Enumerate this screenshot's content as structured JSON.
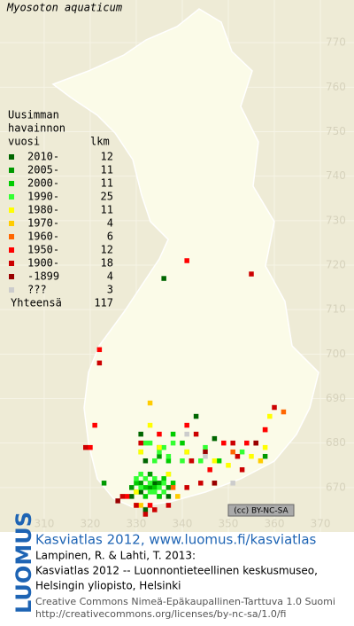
{
  "chart_data": {
    "type": "grid-map",
    "title": "Myosoton aquaticum",
    "legend_heading": [
      "Uusimman",
      "havainnon",
      "vuosi"
    ],
    "count_heading": "lkm",
    "total_label": "Yhteensä",
    "total": 117,
    "xlim": [
      300.4,
      377.3
    ],
    "ylim": [
      660,
      779.6
    ],
    "xticks": [
      310,
      320,
      330,
      340,
      350,
      360,
      370
    ],
    "yticks": [
      670,
      680,
      690,
      700,
      710,
      720,
      730,
      740,
      750,
      760,
      770
    ],
    "grid": true,
    "license_badge": "(cc) BY-NC-SA",
    "series": [
      {
        "name": "2010-",
        "count": 12,
        "color": "#006600",
        "x": [
          336,
          331,
          332,
          334,
          335,
          331,
          337,
          347,
          343,
          341,
          329,
          332
        ],
        "y": [
          717,
          682,
          676,
          671,
          668,
          669,
          668,
          681,
          686,
          678,
          668,
          665
        ]
      },
      {
        "name": "2005-",
        "count": 11,
        "color": "#009900",
        "x": [
          335,
          335,
          333,
          331,
          335,
          329,
          337,
          342,
          323,
          358,
          333
        ],
        "y": [
          679,
          677,
          670,
          671,
          671,
          670,
          670,
          676,
          671,
          677,
          673
        ]
      },
      {
        "name": "2000-",
        "count": 11,
        "color": "#00cc00",
        "x": [
          330,
          332,
          334,
          336,
          338,
          332,
          335,
          340,
          337,
          348,
          338
        ],
        "y": [
          671,
          670,
          670,
          672,
          671,
          668,
          668,
          680,
          676,
          676,
          682
        ]
      },
      {
        "name": "1990-",
        "count": 25,
        "color": "#33ff33",
        "x": [
          330,
          331,
          332,
          333,
          334,
          335,
          336,
          331,
          333,
          334,
          336,
          330,
          337,
          334,
          335,
          336,
          333,
          337,
          344,
          345,
          340,
          338,
          331,
          332,
          353
        ],
        "y": [
          672,
          673,
          672,
          671,
          672,
          670,
          671,
          670,
          669,
          669,
          669,
          669,
          673,
          676,
          678,
          679,
          680,
          677,
          676,
          679,
          676,
          680,
          678,
          680,
          678
        ]
      },
      {
        "name": "1980-",
        "count": 11,
        "color": "#ffff00",
        "x": [
          358,
          355,
          359,
          335,
          331,
          330,
          337,
          341,
          333,
          347,
          350
        ],
        "y": [
          679,
          677,
          686,
          679,
          678,
          669,
          673,
          678,
          684,
          676,
          675
        ]
      },
      {
        "name": "1970-",
        "count": 4,
        "color": "#ffcc00",
        "x": [
          333,
          331,
          339,
          357
        ],
        "y": [
          689,
          666,
          668,
          676
        ]
      },
      {
        "name": "1960-",
        "count": 6,
        "color": "#ff6600",
        "x": [
          362,
          358,
          330,
          347,
          351,
          338
        ],
        "y": [
          687,
          683,
          666,
          671,
          678,
          670
        ]
      },
      {
        "name": "1950-",
        "count": 12,
        "color": "#ff0000",
        "x": [
          341,
          322,
          321,
          320,
          335,
          341,
          349,
          354,
          358,
          328,
          333,
          346
        ],
        "y": [
          721,
          701,
          684,
          679,
          682,
          684,
          680,
          680,
          683,
          668,
          666,
          674
        ]
      },
      {
        "name": "1900-",
        "count": 18,
        "color": "#cc0000",
        "x": [
          355,
          322,
          319,
          331,
          343,
          342,
          351,
          356,
          353,
          330,
          332,
          334,
          337,
          341,
          344,
          327,
          352,
          360
        ],
        "y": [
          718,
          698,
          679,
          680,
          682,
          676,
          680,
          680,
          674,
          666,
          664,
          665,
          666,
          670,
          671,
          668,
          677,
          688
        ]
      },
      {
        "name": "-1899",
        "count": 4,
        "color": "#990000",
        "x": [
          347,
          345,
          356,
          326
        ],
        "y": [
          671,
          678,
          680,
          667
        ]
      },
      {
        "name": "???",
        "count": 3,
        "color": "#cccccc",
        "x": [
          341,
          345,
          351
        ],
        "y": [
          682,
          677,
          671
        ]
      }
    ]
  },
  "footer": {
    "logo": "LUOMUS",
    "headline": "Kasviatlas 2012, www.luomus.fi/kasviatlas",
    "citation": [
      "Lampinen, R. & Lahti, T. 2013:",
      "Kasviatlas 2012 -- Luonnontieteellinen keskusmuseo,",
      "Helsingin yliopisto, Helsinki"
    ],
    "license": [
      "Creative Commons Nimeä-Epäkaupallinen-Tarttuva 1.0 Suomi",
      "http://creativecommons.org/licenses/by-nc-sa/1.0/fi"
    ]
  }
}
